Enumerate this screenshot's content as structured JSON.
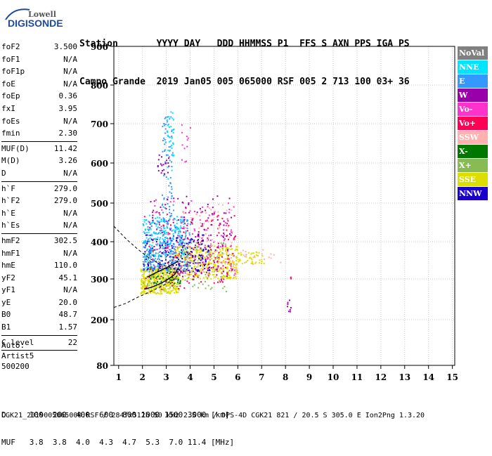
{
  "logo": {
    "top_text": "Lowell",
    "main_text": "DIGISONDE"
  },
  "header": {
    "row1": "Station       YYYY DAY   DDD HHMMSS P1  FFS S AXN PPS IGA PS",
    "row2": "Campo Grande  2019 Jan05 005 065000 RSF 005 2 713 100 03+ 36"
  },
  "params": {
    "group1": [
      {
        "k": "foF2",
        "v": "3.500"
      },
      {
        "k": "foF1",
        "v": "N/A"
      },
      {
        "k": "foF1p",
        "v": "N/A"
      },
      {
        "k": "foE",
        "v": "N/A"
      },
      {
        "k": "foEp",
        "v": "0.36"
      },
      {
        "k": "fxI",
        "v": "3.95"
      },
      {
        "k": "foEs",
        "v": "N/A"
      },
      {
        "k": "fmin",
        "v": "2.30"
      }
    ],
    "group2": [
      {
        "k": "MUF(D)",
        "v": "11.42"
      },
      {
        "k": "M(D)",
        "v": "3.26"
      },
      {
        "k": "D",
        "v": "N/A"
      }
    ],
    "group3": [
      {
        "k": "h`F",
        "v": "279.0"
      },
      {
        "k": "h`F2",
        "v": "279.0"
      },
      {
        "k": "h`E",
        "v": "N/A"
      },
      {
        "k": "h`Es",
        "v": "N/A"
      }
    ],
    "group4": [
      {
        "k": "hmF2",
        "v": "302.5"
      },
      {
        "k": "hmF1",
        "v": "N/A"
      },
      {
        "k": "hmE",
        "v": "110.0"
      },
      {
        "k": "yF2",
        "v": "45.1"
      },
      {
        "k": "yF1",
        "v": "N/A"
      },
      {
        "k": "yE",
        "v": "20.0"
      },
      {
        "k": "B0",
        "v": "48.7"
      },
      {
        "k": "B1",
        "v": "1.57"
      }
    ],
    "group5": [
      {
        "k": "C-level",
        "v": "22"
      }
    ]
  },
  "artist": {
    "line1": "Auto:",
    "line2": "Artist5",
    "line3": "500200"
  },
  "legend": [
    {
      "label": "NoVal",
      "color": "#808080",
      "text_color": "#ffffff"
    },
    {
      "label": "NNE",
      "color": "#00e5ff",
      "text_color": "#ffffff"
    },
    {
      "label": "E",
      "color": "#3399ff",
      "text_color": "#ffffff"
    },
    {
      "label": "W",
      "color": "#9900aa",
      "text_color": "#ffffff"
    },
    {
      "label": "Vo-",
      "color": "#ff33cc",
      "text_color": "#ffffff"
    },
    {
      "label": "Vo+",
      "color": "#ff0055",
      "text_color": "#ffffff"
    },
    {
      "label": "SSW",
      "color": "#ffb0b0",
      "text_color": "#ffffff"
    },
    {
      "label": "X-",
      "color": "#007700",
      "text_color": "#ffffff"
    },
    {
      "label": "X+",
      "color": "#88bb55",
      "text_color": "#ffffff"
    },
    {
      "label": "SSE",
      "color": "#dddd00",
      "text_color": "#ffffff"
    },
    {
      "label": "NNW",
      "color": "#1a00cc",
      "text_color": "#ffffff"
    }
  ],
  "footer": {
    "line1": "D     100  200  400  600  800 1000 1500 3000 [km]",
    "line2": "MUF   3.8  3.8  4.0  4.3  4.7  5.3  7.0 11.4 [MHz]",
    "file": "CGK21_2019005065000.RSF / 284fx512h 50 kHz 2.5 km / DPS-4D CGK21 821 / 20.5 S 305.0 E Ion2Png 1.3.20"
  },
  "chart_data": {
    "type": "scatter",
    "xlim": [
      0.8,
      15.1
    ],
    "ylim": [
      80,
      900
    ],
    "x_ticks": [
      "1",
      "2",
      "3",
      "4",
      "5",
      "6",
      "7",
      "8",
      "9",
      "10",
      "11",
      "12",
      "13",
      "14",
      "15"
    ],
    "y_ticks": [
      "80",
      "200",
      "300",
      "400",
      "500",
      "600",
      "700",
      "800",
      "900"
    ],
    "y_tick_values": [
      80,
      200,
      300,
      400,
      500,
      600,
      700,
      800,
      900
    ],
    "grid": true,
    "clusters": [
      {
        "name": "SSE",
        "color": "#dddd00",
        "x": [
          1.9,
          3.5
        ],
        "y": [
          265,
          330
        ],
        "n": 420,
        "seed": 11
      },
      {
        "name": "SSE",
        "color": "#dddd00",
        "x": [
          3.3,
          6.0
        ],
        "y": [
          300,
          390
        ],
        "n": 380,
        "seed": 12
      },
      {
        "name": "SSE",
        "color": "#dddd00",
        "x": [
          6.0,
          7.1
        ],
        "y": [
          340,
          375
        ],
        "n": 40,
        "seed": 13
      },
      {
        "name": "X+",
        "color": "#88bb55",
        "x": [
          2.0,
          5.5
        ],
        "y": [
          270,
          400
        ],
        "n": 120,
        "seed": 14
      },
      {
        "name": "X-",
        "color": "#007700",
        "x": [
          2.3,
          3.6
        ],
        "y": [
          290,
          330
        ],
        "n": 40,
        "seed": 15
      },
      {
        "name": "Vo+",
        "color": "#ff0055",
        "x": [
          2.0,
          5.9
        ],
        "y": [
          275,
          480
        ],
        "n": 170,
        "seed": 16
      },
      {
        "name": "Vo-",
        "color": "#ff33cc",
        "x": [
          2.4,
          5.9
        ],
        "y": [
          310,
          510
        ],
        "n": 140,
        "seed": 17
      },
      {
        "name": "W",
        "color": "#9900aa",
        "x": [
          2.2,
          5.8
        ],
        "y": [
          300,
          520
        ],
        "n": 130,
        "seed": 18
      },
      {
        "name": "NNW",
        "color": "#1a00cc",
        "x": [
          2.0,
          4.8
        ],
        "y": [
          320,
          420
        ],
        "n": 200,
        "seed": 19
      },
      {
        "name": "E",
        "color": "#3399ff",
        "x": [
          2.0,
          4.0
        ],
        "y": [
          320,
          460
        ],
        "n": 220,
        "seed": 20
      },
      {
        "name": "NNE",
        "color": "#00e5ff",
        "x": [
          2.0,
          3.8
        ],
        "y": [
          330,
          470
        ],
        "n": 160,
        "seed": 21
      },
      {
        "name": "E",
        "color": "#3399ff",
        "x": [
          2.8,
          3.3
        ],
        "y": [
          450,
          720
        ],
        "n": 80,
        "seed": 22
      },
      {
        "name": "NNE",
        "color": "#00e5ff",
        "x": [
          3.0,
          3.3
        ],
        "y": [
          560,
          740
        ],
        "n": 30,
        "seed": 23
      },
      {
        "name": "W",
        "color": "#9900aa",
        "x": [
          2.6,
          3.1
        ],
        "y": [
          570,
          630
        ],
        "n": 20,
        "seed": 24
      },
      {
        "name": "Vo-",
        "color": "#ff33cc",
        "x": [
          3.6,
          4.0
        ],
        "y": [
          600,
          700
        ],
        "n": 12,
        "seed": 25
      },
      {
        "name": "SSW",
        "color": "#ffb0b0",
        "x": [
          3.6,
          6.0
        ],
        "y": [
          320,
          500
        ],
        "n": 70,
        "seed": 26
      },
      {
        "name": "SSW",
        "color": "#ffb0b0",
        "x": [
          6.1,
          7.9
        ],
        "y": [
          340,
          380
        ],
        "n": 18,
        "seed": 27
      },
      {
        "name": "W",
        "color": "#9900aa",
        "x": [
          8.05,
          8.2
        ],
        "y": [
          215,
          250
        ],
        "n": 8,
        "seed": 28
      },
      {
        "name": "Vo+",
        "color": "#ff0055",
        "x": [
          8.1,
          8.2
        ],
        "y": [
          300,
          310
        ],
        "n": 2,
        "seed": 29
      }
    ],
    "profile_curves": [
      {
        "name": "profile",
        "x": [
          2.1,
          2.4,
          2.8,
          3.1,
          3.35,
          3.5
        ],
        "y": [
          275,
          280,
          290,
          300,
          312,
          330
        ]
      },
      {
        "name": "profile-upper",
        "x": [
          2.2,
          2.6,
          3.0,
          3.3,
          3.5
        ],
        "y": [
          305,
          318,
          330,
          340,
          348
        ]
      }
    ],
    "dashed_curves": [
      {
        "name": "dashed-lower",
        "x": [
          0.8,
          1.3,
          1.8,
          2.3,
          2.8,
          3.3,
          3.55
        ],
        "y": [
          230,
          240,
          255,
          268,
          282,
          298,
          315
        ]
      },
      {
        "name": "dashed-upper",
        "x": [
          0.8,
          1.3,
          1.8,
          2.3,
          2.8,
          3.2
        ],
        "y": [
          440,
          408,
          380,
          355,
          338,
          330
        ]
      }
    ]
  }
}
